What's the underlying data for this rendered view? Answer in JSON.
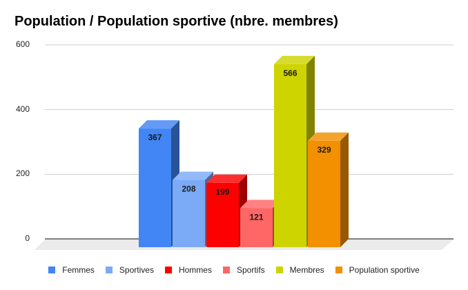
{
  "chart_data": {
    "type": "bar",
    "title": "Population / Population sportive (nbre. membres)",
    "xlabel": "",
    "ylabel": "",
    "ylim": [
      0,
      600
    ],
    "yticks": [
      0,
      200,
      400,
      600
    ],
    "grid": true,
    "legend_position": "bottom",
    "style": "3d",
    "categories": [
      "Femmes",
      "Sportives",
      "Hommes",
      "Sportifs",
      "Membres",
      "Population sportive"
    ],
    "series": [
      {
        "name": "Femmes",
        "values": [
          367
        ],
        "color": "#4285f4"
      },
      {
        "name": "Sportives",
        "values": [
          208
        ],
        "color": "#7baaf7"
      },
      {
        "name": "Hommes",
        "values": [
          199
        ],
        "color": "#ff0000"
      },
      {
        "name": "Sportifs",
        "values": [
          121
        ],
        "color": "#ff6666"
      },
      {
        "name": "Membres",
        "values": [
          566
        ],
        "color": "#cdd400"
      },
      {
        "name": "Population sportive",
        "values": [
          329
        ],
        "color": "#f29000"
      }
    ]
  },
  "title": "Population / Population sportive (nbre. membres)",
  "yaxis": {
    "ticks": [
      "600",
      "400",
      "200",
      "0"
    ]
  },
  "legend": [
    "Femmes",
    "Sportives",
    "Hommes",
    "Sportifs",
    "Membres",
    "Population sportive"
  ]
}
